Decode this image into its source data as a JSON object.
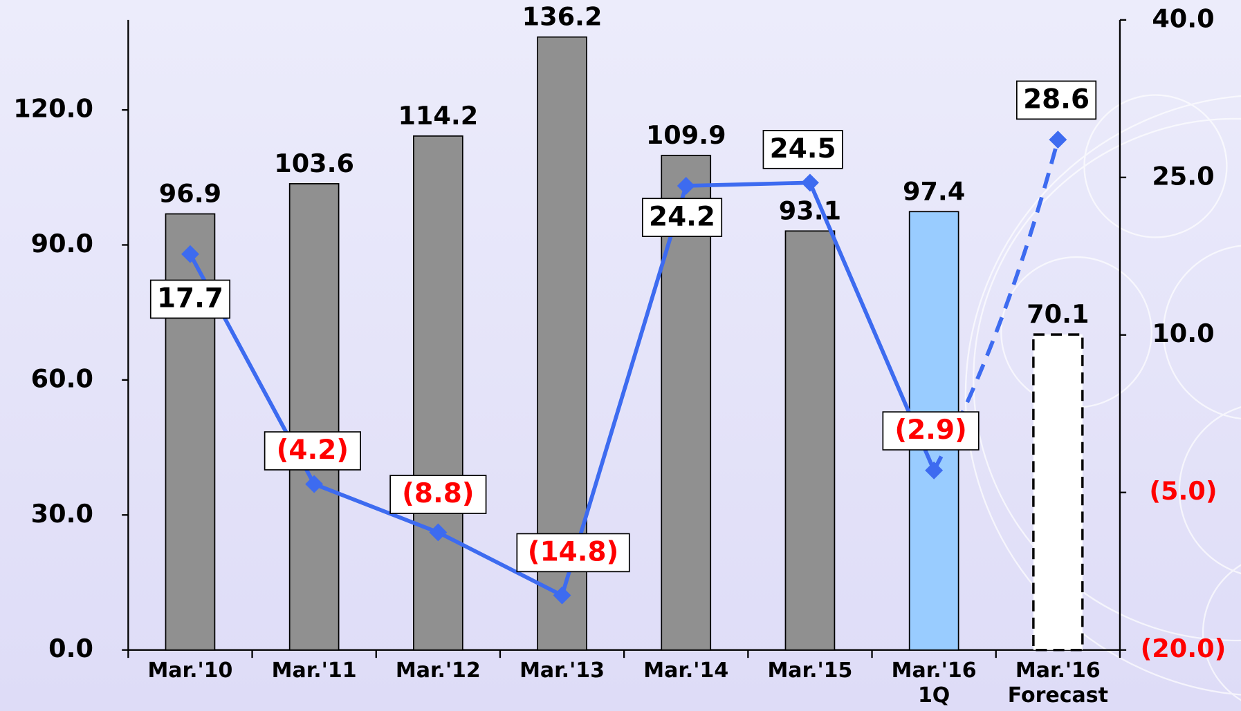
{
  "chart_data": {
    "type": "bar",
    "categories": [
      "Mar.'10",
      "Mar.'11",
      "Mar.'12",
      "Mar.'13",
      "Mar.'14",
      "Mar.'15",
      "Mar.'16\n1Q",
      "Mar.'16\nForecast"
    ],
    "ylim": [
      0,
      140
    ],
    "yticks": [
      {
        "value": 0,
        "label": "0.0"
      },
      {
        "value": 30,
        "label": "30.0"
      },
      {
        "value": 60,
        "label": "60.0"
      },
      {
        "value": 90,
        "label": "90.0"
      },
      {
        "value": 120,
        "label": "120.0"
      }
    ],
    "y2lim": [
      -20,
      40
    ],
    "y2ticks": [
      {
        "value": -20,
        "label": "(20.0)"
      },
      {
        "value": -5,
        "label": "(5.0)"
      },
      {
        "value": 10,
        "label": "10.0"
      },
      {
        "value": 25,
        "label": "25.0"
      },
      {
        "value": 40,
        "label": "40.0"
      }
    ],
    "series": [
      {
        "type": "bar",
        "values": [
          96.9,
          103.6,
          114.2,
          136.2,
          109.9,
          93.1,
          97.4,
          70.1
        ],
        "colors": [
          "#909090",
          "#909090",
          "#909090",
          "#909090",
          "#909090",
          "#909090",
          "#99ccff",
          "#ffffff"
        ],
        "dashed_last": true
      },
      {
        "type": "line",
        "axis": "y2",
        "color": "#3d6bf0",
        "values": [
          17.7,
          -4.2,
          -8.8,
          -14.8,
          24.2,
          24.5,
          -2.9,
          28.6
        ],
        "value_labels": [
          "17.7",
          "(4.2)",
          "(8.8)",
          "(14.8)",
          "24.2",
          "24.5",
          "(2.9)",
          "28.6"
        ],
        "dashed_last": true
      }
    ]
  }
}
